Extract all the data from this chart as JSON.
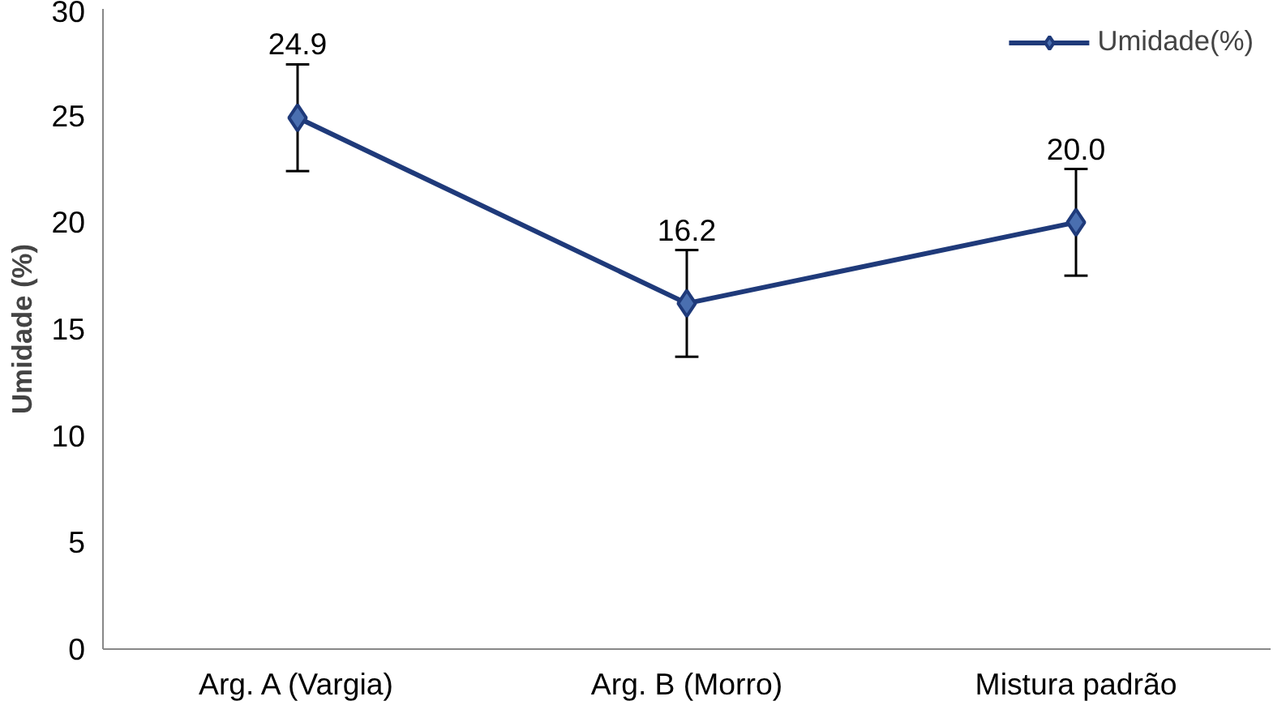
{
  "chart_data": {
    "type": "line",
    "ylabel": "Umidade (%)",
    "categories": [
      "Arg. A (Vargia)",
      "Arg. B (Morro)",
      "Mistura padrão"
    ],
    "series": [
      {
        "name": "Umidade(%)",
        "color": "#1f3a7a",
        "values": [
          24.9,
          16.2,
          20.0
        ],
        "errors": [
          2.5,
          2.5,
          2.5
        ],
        "value_labels": [
          "24.9",
          "16.2",
          "20.0"
        ]
      }
    ],
    "ylim": [
      0,
      30
    ],
    "yticks": [
      0,
      5,
      10,
      15,
      20,
      25,
      30
    ],
    "grid": false,
    "legend": "top right",
    "marker": "diamond",
    "line_style": "solid"
  }
}
